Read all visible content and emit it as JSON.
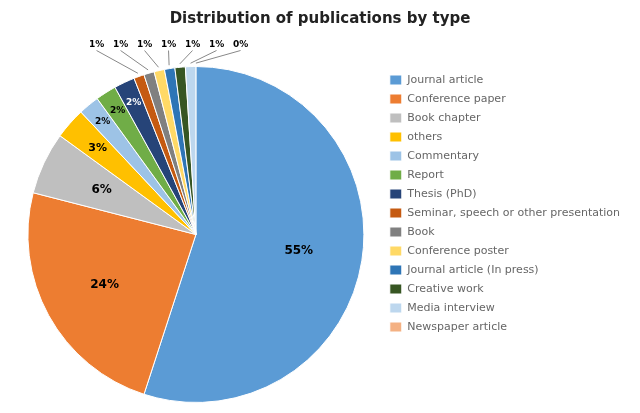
{
  "chart_data": {
    "type": "pie",
    "title": "Distribution of publications by type",
    "categories": [
      "Journal article",
      "Conference paper",
      "Book chapter",
      "others",
      "Commentary",
      "Report",
      "Thesis (PhD)",
      "Seminar, speech or other presentation",
      "Book",
      "Conference poster",
      "Journal article (In press)",
      "Creative work",
      "Media interview",
      "Newspaper article"
    ],
    "values": [
      55,
      24,
      6,
      3,
      2,
      2,
      2,
      1,
      1,
      1,
      1,
      1,
      1,
      0
    ],
    "value_labels": [
      "55%",
      "24%",
      "6%",
      "3%",
      "2%",
      "2%",
      "2%",
      "1%",
      "1%",
      "1%",
      "1%",
      "1%",
      "1%",
      "0%"
    ],
    "colors": [
      "#5B9BD5",
      "#ED7D31",
      "#BFBFBF",
      "#FFC000",
      "#9DC3E6",
      "#70AD47",
      "#264478",
      "#C55A11",
      "#808080",
      "#FFD966",
      "#2E75B6",
      "#375623",
      "#BDD7EE",
      "#F4B183"
    ],
    "data_labels": true,
    "legend": "right"
  }
}
